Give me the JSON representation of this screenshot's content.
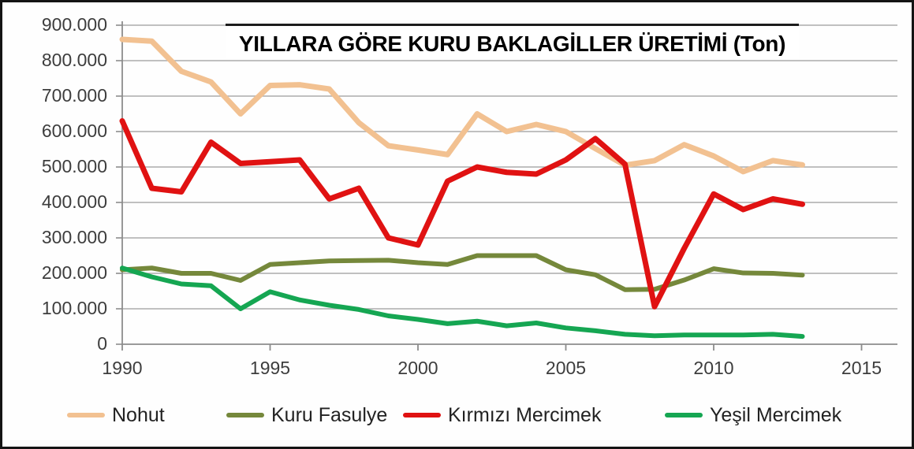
{
  "chart_data": {
    "type": "line",
    "title": "YILLARA GÖRE KURU BAKLAGİLLER ÜRETİMİ (Ton)",
    "xlabel": "",
    "ylabel": "",
    "x": [
      1990,
      1991,
      1992,
      1993,
      1994,
      1995,
      1996,
      1997,
      1998,
      1999,
      2000,
      2001,
      2002,
      2003,
      2004,
      2005,
      2006,
      2007,
      2008,
      2009,
      2010,
      2011,
      2012,
      2013
    ],
    "series": [
      {
        "name": "Nohut",
        "color": "#F2C191",
        "values": [
          860000,
          855000,
          770000,
          740000,
          650000,
          730000,
          732000,
          720000,
          625000,
          560000,
          548000,
          535000,
          650000,
          600000,
          620000,
          600000,
          552000,
          505000,
          518000,
          563000,
          531000,
          487000,
          518000,
          506000
        ]
      },
      {
        "name": "Kuru Fasulye",
        "color": "#75883B",
        "values": [
          210000,
          215000,
          200000,
          200000,
          180000,
          225000,
          230000,
          235000,
          236000,
          237000,
          230000,
          225000,
          250000,
          250000,
          250000,
          210000,
          196000,
          154000,
          155000,
          181000,
          213000,
          201000,
          200000,
          195000
        ]
      },
      {
        "name": "Kırmızı Mercimek",
        "color": "#E01212",
        "values": [
          630000,
          440000,
          430000,
          570000,
          510000,
          515000,
          520000,
          410000,
          440000,
          300000,
          280000,
          460000,
          500000,
          485000,
          480000,
          520000,
          580000,
          508000,
          106000,
          270000,
          424000,
          380000,
          410000,
          395000
        ]
      },
      {
        "name": "Yeşil Mercimek",
        "color": "#15A652",
        "values": [
          215000,
          190000,
          170000,
          165000,
          100000,
          148000,
          125000,
          110000,
          98000,
          80000,
          70000,
          58000,
          65000,
          52000,
          60000,
          46000,
          38000,
          28000,
          24000,
          26000,
          26000,
          26000,
          28000,
          22000
        ]
      }
    ],
    "y_axis": {
      "range": [
        0,
        900000
      ],
      "grid": true,
      "ticks": [
        {
          "value": 0,
          "label": "0"
        },
        {
          "value": 100000,
          "label": "100.000"
        },
        {
          "value": 200000,
          "label": "200.000"
        },
        {
          "value": 300000,
          "label": "300.000"
        },
        {
          "value": 400000,
          "label": "400.000"
        },
        {
          "value": 500000,
          "label": "500.000"
        },
        {
          "value": 600000,
          "label": "600.000"
        },
        {
          "value": 700000,
          "label": "700.000"
        },
        {
          "value": 800000,
          "label": "800.000"
        },
        {
          "value": 900000,
          "label": "900.000"
        }
      ]
    },
    "x_axis": {
      "range": [
        1990,
        2015
      ],
      "ticks": [
        1990,
        1995,
        2000,
        2005,
        2010,
        2015
      ]
    },
    "legend_position": "bottom"
  },
  "style": {
    "grid_color": "#ABABAB",
    "axis_color": "#8C8C8C",
    "tick_text_color": "#3D3D3D",
    "title_color": "#000000",
    "legend_text_color": "#222222",
    "background": "#FFFFFF",
    "frame_border_color": "#141414"
  }
}
